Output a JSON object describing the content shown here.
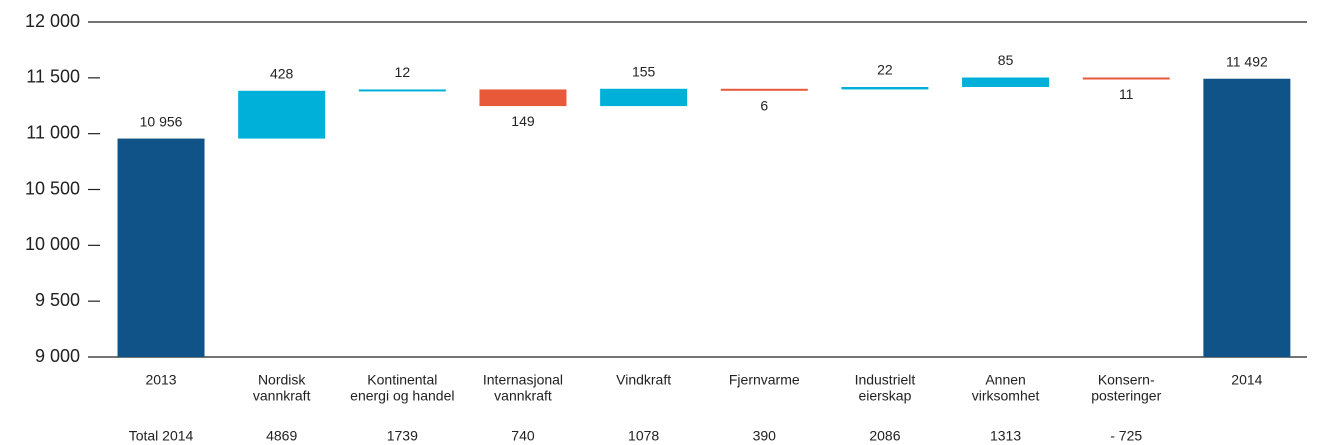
{
  "chart_data": {
    "type": "waterfall",
    "categories": [
      [
        "2013"
      ],
      [
        "Nordisk",
        "vannkraft"
      ],
      [
        "Kontinental",
        "energi og handel"
      ],
      [
        "Internasjonal",
        "vannkraft"
      ],
      [
        "Vindkraft"
      ],
      [
        "Fjernvarme"
      ],
      [
        "Industrielt",
        "eierskap"
      ],
      [
        "Annen",
        "virksomhet"
      ],
      [
        "Konsern-",
        "posteringer"
      ],
      [
        "2014"
      ]
    ],
    "measures": [
      "total",
      "relative",
      "relative",
      "relative",
      "relative",
      "relative",
      "relative",
      "relative",
      "relative",
      "total"
    ],
    "values": [
      10956,
      428,
      12,
      -149,
      155,
      -6,
      22,
      85,
      -11,
      11492
    ],
    "value_labels": [
      "10 956",
      "428",
      "12",
      "149",
      "155",
      "6",
      "22",
      "85",
      "11",
      "11 492"
    ],
    "total_color": "#0f5389",
    "increase_color": "#00b0d9",
    "decrease_color": "#e8593a",
    "ylim": [
      9000,
      12000
    ],
    "yticks": [
      {
        "value": 9000,
        "label": "9 000"
      },
      {
        "value": 9500,
        "label": "9 500"
      },
      {
        "value": 10000,
        "label": "10 000"
      },
      {
        "value": 10500,
        "label": "10 500"
      },
      {
        "value": 11000,
        "label": "11 000"
      },
      {
        "value": 11500,
        "label": "11 500"
      },
      {
        "value": 12000,
        "label": "12 000"
      }
    ],
    "footer_row": [
      "Total 2014",
      "4869",
      "1739",
      "740",
      "1078",
      "390",
      "2086",
      "1313",
      "- 725"
    ]
  }
}
